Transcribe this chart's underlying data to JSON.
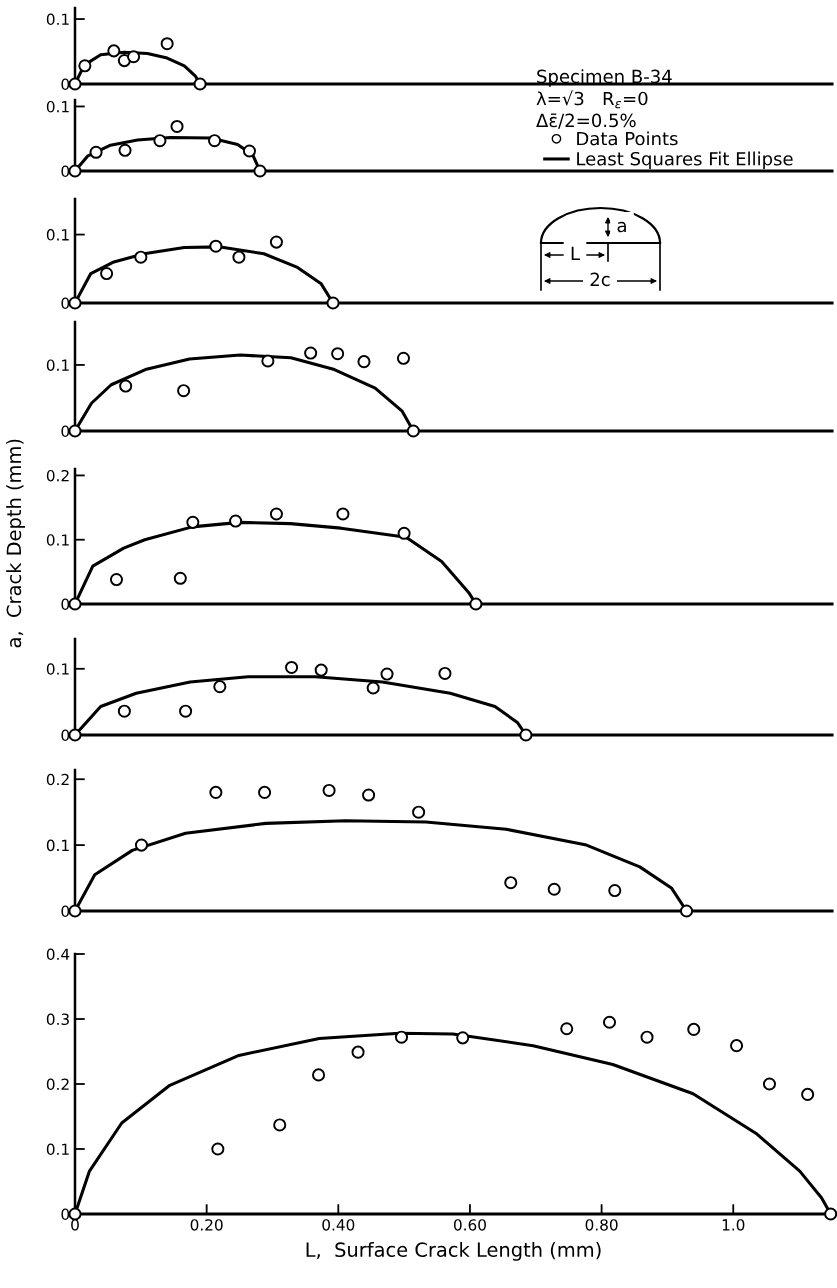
{
  "chart_data": [
    {
      "type": "scatter",
      "xlim": [
        0,
        1.15
      ],
      "ylim": [
        0,
        0.117
      ],
      "yticks": [
        0,
        0.1
      ],
      "tick_labels": "y",
      "legend": "right",
      "annotations": [
        "Specimen B-34",
        "λ=√3   R$_{ε}$=0",
        "Δε̄/2=0.5%",
        "a",
        "L",
        "2c"
      ],
      "series": [
        {
          "name": "Data Points",
          "type": "scatter",
          "marker": "circle",
          "color": "#000000",
          "x": [
            0,
            0.015,
            0.059,
            0.075,
            0.089,
            0.14,
            0.19
          ],
          "values": [
            0,
            0.028,
            0.051,
            0.036,
            0.042,
            0.062,
            0
          ]
        },
        {
          "name": "Least Squares Fit Ellipse",
          "type": "line",
          "color": "#000000",
          "x": [
            0,
            0.014,
            0.039,
            0.075,
            0.11,
            0.14,
            0.166,
            0.183,
            0.19
          ],
          "values": [
            0,
            0.029,
            0.045,
            0.049,
            0.047,
            0.04,
            0.028,
            0.012,
            0
          ]
        }
      ]
    },
    {
      "type": "scatter",
      "xlim": [
        0,
        1.15
      ],
      "ylim": [
        0,
        0.11
      ],
      "yticks": [
        0,
        0.1
      ],
      "tick_labels": "y",
      "series": [
        {
          "type": "scatter",
          "marker": "circle",
          "color": "#000000",
          "x": [
            0,
            0.032,
            0.076,
            0.129,
            0.155,
            0.212,
            0.265,
            0.281
          ],
          "values": [
            0,
            0.029,
            0.032,
            0.047,
            0.069,
            0.047,
            0.031,
            0
          ]
        },
        {
          "type": "line",
          "color": "#000000",
          "x": [
            0,
            0.019,
            0.054,
            0.095,
            0.145,
            0.206,
            0.247,
            0.27,
            0.281
          ],
          "values": [
            0,
            0.023,
            0.04,
            0.048,
            0.052,
            0.051,
            0.041,
            0.025,
            0
          ]
        }
      ]
    },
    {
      "type": "scatter",
      "xlim": [
        0,
        1.15
      ],
      "ylim": [
        0,
        0.152
      ],
      "yticks": [
        0,
        0.1
      ],
      "tick_labels": "y",
      "series": [
        {
          "type": "scatter",
          "marker": "circle",
          "color": "#000000",
          "x": [
            0,
            0.048,
            0.1,
            0.214,
            0.249,
            0.306,
            0.392
          ],
          "values": [
            0,
            0.043,
            0.067,
            0.083,
            0.067,
            0.089,
            0
          ]
        },
        {
          "type": "line",
          "color": "#000000",
          "x": [
            0,
            0.024,
            0.059,
            0.105,
            0.166,
            0.221,
            0.287,
            0.338,
            0.374,
            0.392
          ],
          "values": [
            0,
            0.043,
            0.06,
            0.072,
            0.081,
            0.082,
            0.072,
            0.052,
            0.028,
            0
          ]
        }
      ]
    },
    {
      "type": "scatter",
      "xlim": [
        0,
        1.15
      ],
      "ylim": [
        0,
        0.165
      ],
      "yticks": [
        0,
        0.1
      ],
      "tick_labels": "y",
      "series": [
        {
          "type": "scatter",
          "marker": "circle",
          "color": "#000000",
          "x": [
            0,
            0.077,
            0.165,
            0.293,
            0.358,
            0.399,
            0.439,
            0.499,
            0.514
          ],
          "values": [
            0,
            0.068,
            0.061,
            0.106,
            0.118,
            0.117,
            0.105,
            0.11,
            0
          ]
        },
        {
          "type": "line",
          "color": "#000000",
          "x": [
            0,
            0.025,
            0.055,
            0.107,
            0.174,
            0.251,
            0.328,
            0.394,
            0.456,
            0.497,
            0.514
          ],
          "values": [
            0,
            0.042,
            0.07,
            0.093,
            0.109,
            0.115,
            0.111,
            0.093,
            0.065,
            0.03,
            0
          ]
        }
      ]
    },
    {
      "type": "scatter",
      "xlim": [
        0,
        1.15
      ],
      "ylim": [
        0,
        0.21
      ],
      "yticks": [
        0,
        0.1,
        0.2
      ],
      "tick_labels": "y",
      "ylabel": "a,  Crack Depth (mm)",
      "series": [
        {
          "type": "scatter",
          "marker": "circle",
          "color": "#000000",
          "x": [
            0,
            0.063,
            0.16,
            0.179,
            0.244,
            0.306,
            0.407,
            0.5,
            0.609
          ],
          "values": [
            0,
            0.038,
            0.04,
            0.127,
            0.129,
            0.14,
            0.14,
            0.11,
            0
          ]
        },
        {
          "type": "line",
          "color": "#000000",
          "x": [
            0,
            0.027,
            0.074,
            0.106,
            0.178,
            0.25,
            0.327,
            0.404,
            0.503,
            0.557,
            0.598,
            0.609
          ],
          "values": [
            0,
            0.059,
            0.087,
            0.1,
            0.12,
            0.127,
            0.125,
            0.118,
            0.104,
            0.066,
            0.018,
            0
          ]
        }
      ]
    },
    {
      "type": "scatter",
      "xlim": [
        0,
        1.15
      ],
      "ylim": [
        0,
        0.145
      ],
      "yticks": [
        0,
        0.1
      ],
      "tick_labels": "y",
      "series": [
        {
          "type": "scatter",
          "marker": "circle",
          "color": "#000000",
          "x": [
            0,
            0.075,
            0.168,
            0.22,
            0.329,
            0.374,
            0.453,
            0.474,
            0.562,
            0.685
          ],
          "values": [
            0,
            0.036,
            0.036,
            0.073,
            0.102,
            0.098,
            0.071,
            0.092,
            0.093,
            0
          ]
        },
        {
          "type": "line",
          "color": "#000000",
          "x": [
            0,
            0.039,
            0.093,
            0.175,
            0.263,
            0.365,
            0.467,
            0.57,
            0.638,
            0.672,
            0.685
          ],
          "values": [
            0,
            0.043,
            0.063,
            0.08,
            0.088,
            0.088,
            0.08,
            0.063,
            0.043,
            0.019,
            0
          ]
        }
      ]
    },
    {
      "type": "scatter",
      "xlim": [
        0,
        1.15
      ],
      "ylim": [
        0,
        0.214
      ],
      "yticks": [
        0,
        0.1,
        0.2
      ],
      "tick_labels": "y",
      "series": [
        {
          "type": "scatter",
          "marker": "circle",
          "color": "#000000",
          "x": [
            0,
            0.101,
            0.214,
            0.288,
            0.386,
            0.446,
            0.522,
            0.662,
            0.728,
            0.82,
            0.929
          ],
          "values": [
            0,
            0.1,
            0.18,
            0.18,
            0.183,
            0.176,
            0.15,
            0.043,
            0.033,
            0.031,
            0
          ]
        },
        {
          "type": "line",
          "color": "#000000",
          "x": [
            0,
            0.03,
            0.087,
            0.168,
            0.29,
            0.411,
            0.533,
            0.655,
            0.777,
            0.858,
            0.906,
            0.929
          ],
          "values": [
            0,
            0.055,
            0.092,
            0.118,
            0.133,
            0.137,
            0.135,
            0.124,
            0.1,
            0.067,
            0.035,
            0
          ]
        }
      ]
    },
    {
      "type": "scatter",
      "xlim": [
        0,
        1.15
      ],
      "ylim": [
        0,
        0.4
      ],
      "yticks": [
        0,
        0.1,
        0.2,
        0.3,
        0.4
      ],
      "xlabel": "L,  Surface Crack Length (mm)",
      "xticks": [
        0,
        {
          "value": 0.2,
          "label": "0.20"
        },
        {
          "value": 0.4,
          "label": "0.40"
        },
        {
          "value": 0.6,
          "label": "0.60"
        },
        {
          "value": 0.8,
          "label": "0.80"
        },
        {
          "value": 1.0,
          "label": "1.0"
        }
      ],
      "series": [
        {
          "type": "scatter",
          "marker": "circle",
          "color": "#000000",
          "x": [
            0,
            0.217,
            0.311,
            0.37,
            0.43,
            0.496,
            0.589,
            0.747,
            0.812,
            0.869,
            0.94,
            1.005,
            1.055,
            1.113,
            1.148
          ],
          "values": [
            0,
            0.1,
            0.137,
            0.214,
            0.249,
            0.272,
            0.271,
            0.285,
            0.295,
            0.272,
            0.284,
            0.259,
            0.2,
            0.184,
            0
          ]
        },
        {
          "type": "line",
          "color": "#000000",
          "x": [
            0,
            0.022,
            0.071,
            0.144,
            0.249,
            0.371,
            0.493,
            0.574,
            0.696,
            0.817,
            0.939,
            1.036,
            1.101,
            1.134,
            1.148
          ],
          "values": [
            0,
            0.066,
            0.14,
            0.198,
            0.244,
            0.27,
            0.278,
            0.277,
            0.259,
            0.23,
            0.185,
            0.123,
            0.066,
            0.025,
            0
          ]
        }
      ]
    }
  ]
}
